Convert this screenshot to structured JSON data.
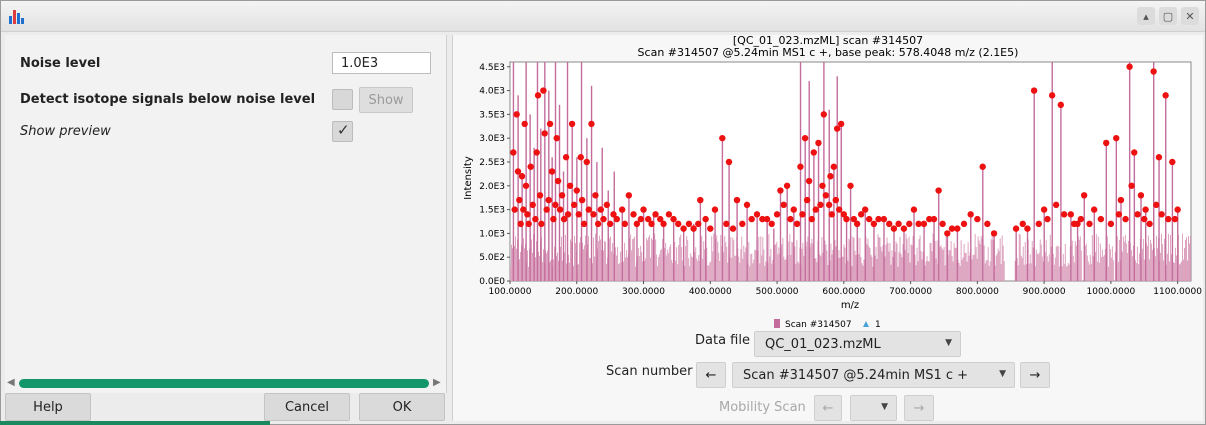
{
  "left": {
    "noise_label": "Noise level",
    "noise_value": "1.0E3",
    "isotope_label": "Detect isotope signals below noise level",
    "show_label": "Show",
    "preview_label": "Show preview"
  },
  "buttons": {
    "help": "Help",
    "cancel": "Cancel",
    "ok": "OK"
  },
  "colors": {
    "bars": "#c46c9c",
    "peaks": "#ee1111",
    "scroll": "#14966b"
  },
  "controls": {
    "data_file_label": "Data file",
    "data_file_value": "QC_01_023.mzML",
    "scan_number_label": "Scan number",
    "scan_value": "Scan #314507 @5.24min MS1 c +",
    "prev": "←",
    "next": "→",
    "mobility_label": "Mobility Scan"
  },
  "chart_data": {
    "type": "bar",
    "title": "[QC_01_023.mzML] scan #314507",
    "subtitle": "Scan #314507 @5.24min MS1 c +, base peak: 578.4048 m/z (2.1E5)",
    "xlabel": "m/z",
    "ylabel": "Intensity",
    "xlim": [
      100,
      1120
    ],
    "ylim": [
      0,
      4600
    ],
    "x_ticks": [
      "100.0000",
      "200.0000",
      "300.0000",
      "400.0000",
      "500.0000",
      "600.0000",
      "700.0000",
      "800.0000",
      "900.0000",
      "1000.0000",
      "1100.0000"
    ],
    "y_ticks": [
      "0.0E0",
      "5.0E2",
      "1.0E3",
      "1.5E3",
      "2.0E3",
      "2.5E3",
      "3.0E3",
      "3.5E3",
      "4.0E3",
      "4.5E3"
    ],
    "legend": [
      "Scan #314507",
      "1"
    ],
    "legend_placement": "bottom",
    "series": [
      {
        "name": "Scan #314507",
        "kind": "bars",
        "values": [
          [
            105,
            4600
          ],
          [
            112,
            3900
          ],
          [
            118,
            2200
          ],
          [
            124,
            4600
          ],
          [
            130,
            3500
          ],
          [
            136,
            2800
          ],
          [
            141,
            4600
          ],
          [
            146,
            3200
          ],
          [
            152,
            4600
          ],
          [
            158,
            4000
          ],
          [
            163,
            2600
          ],
          [
            168,
            4600
          ],
          [
            174,
            3700
          ],
          [
            180,
            2300
          ],
          [
            186,
            4600
          ],
          [
            193,
            3300
          ],
          [
            200,
            2600
          ],
          [
            207,
            4600
          ],
          [
            215,
            3000
          ],
          [
            222,
            4100
          ],
          [
            230,
            2500
          ],
          [
            238,
            2800
          ],
          [
            247,
            1900
          ],
          [
            256,
            2300
          ],
          [
            268,
            1500
          ],
          [
            278,
            1800
          ],
          [
            290,
            1200
          ],
          [
            300,
            1500
          ],
          [
            315,
            1400
          ],
          [
            330,
            1200
          ],
          [
            345,
            1300
          ],
          [
            360,
            1100
          ],
          [
            375,
            1200
          ],
          [
            385,
            1700
          ],
          [
            393,
            1300
          ],
          [
            407,
            1500
          ],
          [
            418,
            3000
          ],
          [
            428,
            2500
          ],
          [
            440,
            1700
          ],
          [
            455,
            1600
          ],
          [
            470,
            1400
          ],
          [
            485,
            1300
          ],
          [
            495,
            1100
          ],
          [
            505,
            1900
          ],
          [
            515,
            2000
          ],
          [
            525,
            1500
          ],
          [
            535,
            4600
          ],
          [
            542,
            3000
          ],
          [
            548,
            4200
          ],
          [
            555,
            2700
          ],
          [
            562,
            2900
          ],
          [
            570,
            4600
          ],
          [
            578,
            3600
          ],
          [
            585,
            2400
          ],
          [
            590,
            4300
          ],
          [
            596,
            3300
          ],
          [
            604,
            1300
          ],
          [
            610,
            2000
          ],
          [
            620,
            1200
          ],
          [
            632,
            1500
          ],
          [
            645,
            1200
          ],
          [
            660,
            1300
          ],
          [
            675,
            1100
          ],
          [
            690,
            1100
          ],
          [
            705,
            1500
          ],
          [
            720,
            1200
          ],
          [
            735,
            1300
          ],
          [
            742,
            1900
          ],
          [
            755,
            1000
          ],
          [
            770,
            1100
          ],
          [
            790,
            1400
          ],
          [
            808,
            2400
          ],
          [
            825,
            1000
          ],
          [
            858,
            1100
          ],
          [
            875,
            1100
          ],
          [
            885,
            4000
          ],
          [
            900,
            1500
          ],
          [
            912,
            4600
          ],
          [
            925,
            3700
          ],
          [
            940,
            1400
          ],
          [
            950,
            1200
          ],
          [
            960,
            1800
          ],
          [
            975,
            1500
          ],
          [
            993,
            2900
          ],
          [
            1008,
            3000
          ],
          [
            1015,
            1700
          ],
          [
            1028,
            4600
          ],
          [
            1035,
            2700
          ],
          [
            1045,
            1800
          ],
          [
            1052,
            1500
          ],
          [
            1064,
            4600
          ],
          [
            1072,
            2600
          ],
          [
            1082,
            3900
          ],
          [
            1092,
            2500
          ],
          [
            1100,
            1500
          ]
        ]
      },
      {
        "name": "1",
        "kind": "peaks",
        "points": [
          [
            105,
            2700
          ],
          [
            107,
            1500
          ],
          [
            110,
            3500
          ],
          [
            112,
            2300
          ],
          [
            114,
            1700
          ],
          [
            116,
            1200
          ],
          [
            118,
            2200
          ],
          [
            120,
            1500
          ],
          [
            122,
            3300
          ],
          [
            124,
            2000
          ],
          [
            126,
            1400
          ],
          [
            128,
            1200
          ],
          [
            131,
            2400
          ],
          [
            134,
            1600
          ],
          [
            138,
            1300
          ],
          [
            140,
            2700
          ],
          [
            142,
            3900
          ],
          [
            145,
            1800
          ],
          [
            147,
            1200
          ],
          [
            150,
            4000
          ],
          [
            152,
            3100
          ],
          [
            155,
            1500
          ],
          [
            158,
            1700
          ],
          [
            160,
            3300
          ],
          [
            163,
            2300
          ],
          [
            165,
            1300
          ],
          [
            168,
            1600
          ],
          [
            170,
            3000
          ],
          [
            172,
            2100
          ],
          [
            175,
            1500
          ],
          [
            178,
            1800
          ],
          [
            181,
            1300
          ],
          [
            184,
            2600
          ],
          [
            187,
            1400
          ],
          [
            190,
            2000
          ],
          [
            193,
            3300
          ],
          [
            196,
            1600
          ],
          [
            200,
            1900
          ],
          [
            203,
            1400
          ],
          [
            206,
            2600
          ],
          [
            208,
            1700
          ],
          [
            211,
            1200
          ],
          [
            215,
            2500
          ],
          [
            218,
            1500
          ],
          [
            222,
            3300
          ],
          [
            225,
            1400
          ],
          [
            228,
            1800
          ],
          [
            232,
            1200
          ],
          [
            236,
            1500
          ],
          [
            240,
            1300
          ],
          [
            245,
            1600
          ],
          [
            250,
            1200
          ],
          [
            255,
            1400
          ],
          [
            260,
            1300
          ],
          [
            268,
            1500
          ],
          [
            272,
            1200
          ],
          [
            278,
            1800
          ],
          [
            285,
            1400
          ],
          [
            290,
            1200
          ],
          [
            296,
            1300
          ],
          [
            300,
            1500
          ],
          [
            307,
            1300
          ],
          [
            312,
            1200
          ],
          [
            318,
            1400
          ],
          [
            325,
            1300
          ],
          [
            330,
            1200
          ],
          [
            338,
            1400
          ],
          [
            345,
            1300
          ],
          [
            352,
            1200
          ],
          [
            360,
            1100
          ],
          [
            368,
            1200
          ],
          [
            375,
            1100
          ],
          [
            382,
            1200
          ],
          [
            385,
            1700
          ],
          [
            393,
            1300
          ],
          [
            400,
            1100
          ],
          [
            407,
            1500
          ],
          [
            418,
            3000
          ],
          [
            424,
            1200
          ],
          [
            428,
            2500
          ],
          [
            434,
            1100
          ],
          [
            440,
            1700
          ],
          [
            448,
            1200
          ],
          [
            455,
            1600
          ],
          [
            462,
            1300
          ],
          [
            470,
            1400
          ],
          [
            478,
            1300
          ],
          [
            485,
            1300
          ],
          [
            492,
            1200
          ],
          [
            500,
            1400
          ],
          [
            505,
            1900
          ],
          [
            510,
            1600
          ],
          [
            515,
            2000
          ],
          [
            520,
            1300
          ],
          [
            525,
            1500
          ],
          [
            530,
            1200
          ],
          [
            535,
            2400
          ],
          [
            538,
            1400
          ],
          [
            542,
            3000
          ],
          [
            545,
            1700
          ],
          [
            548,
            2100
          ],
          [
            552,
            1300
          ],
          [
            555,
            2700
          ],
          [
            558,
            1500
          ],
          [
            562,
            2900
          ],
          [
            565,
            1600
          ],
          [
            568,
            2000
          ],
          [
            570,
            3500
          ],
          [
            573,
            1800
          ],
          [
            578,
            1600
          ],
          [
            580,
            2200
          ],
          [
            582,
            1400
          ],
          [
            585,
            2400
          ],
          [
            588,
            1700
          ],
          [
            590,
            3200
          ],
          [
            593,
            1500
          ],
          [
            596,
            3300
          ],
          [
            600,
            1400
          ],
          [
            604,
            1300
          ],
          [
            610,
            2000
          ],
          [
            615,
            1300
          ],
          [
            620,
            1200
          ],
          [
            626,
            1400
          ],
          [
            632,
            1500
          ],
          [
            638,
            1300
          ],
          [
            645,
            1200
          ],
          [
            652,
            1300
          ],
          [
            660,
            1300
          ],
          [
            668,
            1200
          ],
          [
            675,
            1100
          ],
          [
            682,
            1200
          ],
          [
            690,
            1100
          ],
          [
            698,
            1200
          ],
          [
            705,
            1500
          ],
          [
            712,
            1200
          ],
          [
            720,
            1200
          ],
          [
            728,
            1300
          ],
          [
            735,
            1300
          ],
          [
            742,
            1900
          ],
          [
            748,
            1200
          ],
          [
            755,
            1000
          ],
          [
            762,
            1100
          ],
          [
            770,
            1100
          ],
          [
            780,
            1200
          ],
          [
            790,
            1400
          ],
          [
            800,
            1300
          ],
          [
            808,
            2400
          ],
          [
            815,
            1200
          ],
          [
            825,
            1000
          ],
          [
            858,
            1100
          ],
          [
            868,
            1200
          ],
          [
            875,
            1100
          ],
          [
            885,
            4000
          ],
          [
            892,
            1200
          ],
          [
            900,
            1500
          ],
          [
            905,
            1300
          ],
          [
            912,
            3900
          ],
          [
            918,
            1600
          ],
          [
            925,
            3700
          ],
          [
            930,
            1400
          ],
          [
            940,
            1400
          ],
          [
            945,
            1200
          ],
          [
            950,
            1200
          ],
          [
            955,
            1300
          ],
          [
            960,
            1800
          ],
          [
            968,
            1200
          ],
          [
            975,
            1500
          ],
          [
            985,
            1300
          ],
          [
            993,
            2900
          ],
          [
            1000,
            1200
          ],
          [
            1008,
            3000
          ],
          [
            1012,
            1400
          ],
          [
            1015,
            1700
          ],
          [
            1022,
            1300
          ],
          [
            1028,
            4500
          ],
          [
            1031,
            2000
          ],
          [
            1035,
            2700
          ],
          [
            1040,
            1400
          ],
          [
            1045,
            1800
          ],
          [
            1050,
            1300
          ],
          [
            1052,
            1500
          ],
          [
            1058,
            1200
          ],
          [
            1064,
            4400
          ],
          [
            1068,
            1600
          ],
          [
            1072,
            2600
          ],
          [
            1076,
            1400
          ],
          [
            1082,
            3900
          ],
          [
            1086,
            1300
          ],
          [
            1092,
            2500
          ],
          [
            1096,
            1300
          ],
          [
            1100,
            1500
          ]
        ]
      }
    ]
  }
}
